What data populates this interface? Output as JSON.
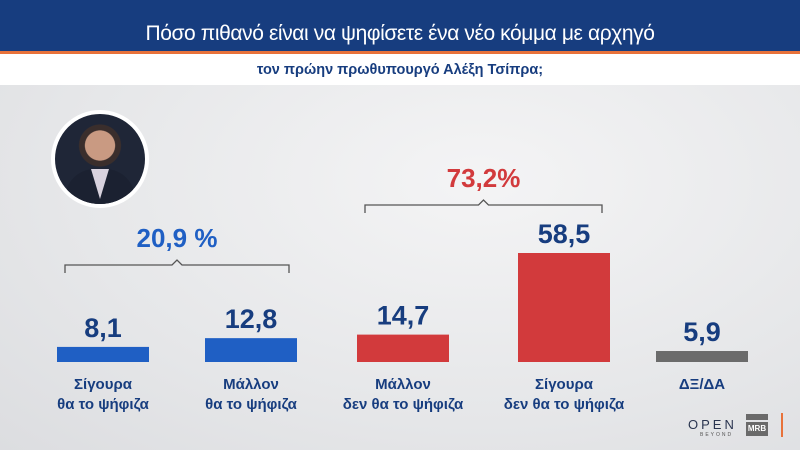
{
  "header": {
    "title": "Πόσο πιθανό είναι να ψηφίσετε ένα νέο κόμμα με αρχηγό",
    "subtitle": "τον πρώην πρωθυπουργό Αλέξη Τσίπρα;"
  },
  "chart_data": {
    "type": "bar",
    "title": "Πόσο πιθανό είναι να ψηφίσετε ένα νέο κόμμα με αρχηγό τον πρώην πρωθυπουργό Αλέξη Τσίπρα;",
    "categories": [
      [
        "Σίγουρα",
        "θα το ψήφιζα"
      ],
      [
        "Μάλλον",
        "θα το ψήφιζα"
      ],
      [
        "Μάλλον",
        "δεν θα το ψήφιζα"
      ],
      [
        "Σίγουρα",
        "δεν θα το ψήφιζα"
      ],
      [
        "ΔΞ/ΔΑ"
      ]
    ],
    "values": [
      8.1,
      12.8,
      14.7,
      58.5,
      5.9
    ],
    "value_labels": [
      "8,1",
      "12,8",
      "14,7",
      "58,5",
      "5,9"
    ],
    "colors": [
      "#1f5fc4",
      "#1f5fc4",
      "#d23a3c",
      "#d23a3c",
      "#6b6b6b"
    ],
    "groups": [
      {
        "label": "20,9 %",
        "from": 0,
        "to": 1,
        "color": "#1f5fc4"
      },
      {
        "label": "73,2%",
        "from": 2,
        "to": 3,
        "color": "#d23a3c"
      }
    ],
    "ylim": [
      0,
      60
    ],
    "grid": false,
    "label_color": "#173d7f"
  },
  "logos": {
    "open": "OPEN",
    "beyond": "BEYOND",
    "mrb": "MRB"
  }
}
